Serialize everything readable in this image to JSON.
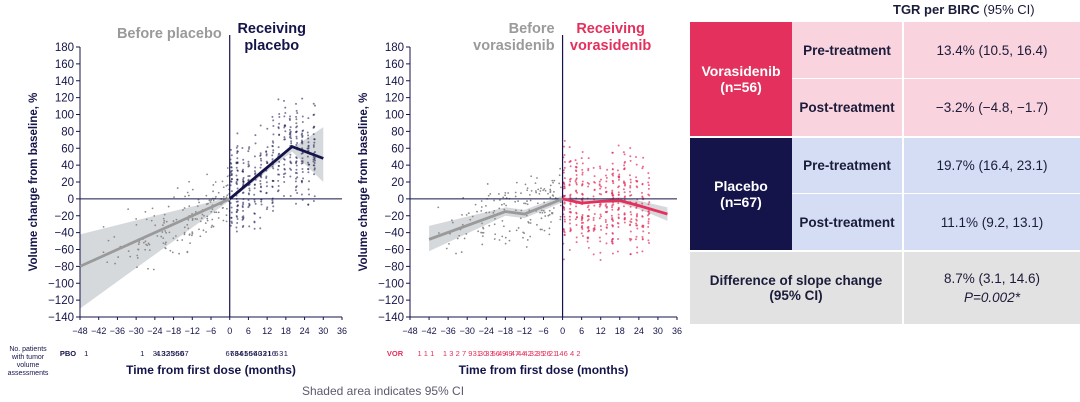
{
  "footnote": "Shaded area indicates 95% CI",
  "table": {
    "header_bold": "TGR per BIRC",
    "header_rest": " (95% CI)",
    "rows": [
      {
        "group": "Vorasidenib\n(n=56)",
        "phase": "Pre-treatment",
        "value": "13.4% (10.5, 16.4)"
      },
      {
        "group": "",
        "phase": "Post-treatment",
        "value": "−3.2%  (−4.8, −1.7)"
      },
      {
        "group": "Placebo\n(n=67)",
        "phase": "Pre-treatment",
        "value": "19.7% (16.4, 23.1)"
      },
      {
        "group": "",
        "phase": "Post-treatment",
        "value": "11.1% (9.2, 13.1)"
      }
    ],
    "diff_label": "Difference of slope change\n(95% CI)",
    "diff_value": "8.7% (3.1, 14.6)",
    "diff_p": "P=0.002*",
    "colors": {
      "vora_dark": "#e3305c",
      "vora_light": "#f9d3dd",
      "placebo_dark": "#14144a",
      "placebo_light": "#d4ddf4",
      "diff_bg": "#e2e2e2"
    }
  },
  "chart_data": [
    {
      "type": "scatter",
      "ylabel": "Volume change from baseline, %",
      "xlabel": "Time from first dose (months)",
      "ylim": [
        -140,
        180
      ],
      "xlim": [
        -48,
        36
      ],
      "yticks": [
        -140,
        -120,
        -100,
        -80,
        -60,
        -40,
        -20,
        0,
        20,
        40,
        60,
        80,
        100,
        120,
        140,
        160,
        180
      ],
      "xticks": [
        -48,
        -42,
        -36,
        -30,
        -24,
        -18,
        -12,
        -6,
        0,
        6,
        12,
        18,
        24,
        30,
        36
      ],
      "region_before": "Before placebo",
      "region_after": "Receiving\nplacebo",
      "before_color": "#9a9a9a",
      "after_color": "#14144a",
      "ci_color": "#cfd2d6",
      "pre_fit": [
        [
          -48,
          -80
        ],
        [
          0,
          0
        ]
      ],
      "pre_ci_upper": [
        [
          -48,
          -42
        ],
        [
          0,
          2
        ]
      ],
      "pre_ci_lower": [
        [
          -48,
          -130
        ],
        [
          0,
          -2
        ]
      ],
      "post_fit": [
        [
          0,
          0
        ],
        [
          20,
          62
        ],
        [
          30,
          48
        ]
      ],
      "post_ci_upper": [
        [
          0,
          2
        ],
        [
          20,
          60
        ],
        [
          30,
          85
        ]
      ],
      "post_ci_lower": [
        [
          0,
          -2
        ],
        [
          20,
          56
        ],
        [
          30,
          20
        ]
      ],
      "patients_label": "No. patients\nwith tumor\nvolume\nassessments",
      "patients_row_label": "PBO",
      "patients_row_color": "#14144a",
      "patients_counts": [
        {
          "x": -46,
          "n": "1"
        },
        {
          "x": -28,
          "n": "1"
        },
        {
          "x": -24,
          "n": "3"
        },
        {
          "x": -23,
          "n": "4"
        },
        {
          "x": -22,
          "n": "13"
        },
        {
          "x": -20.5,
          "n": "32"
        },
        {
          "x": -19,
          "n": "35"
        },
        {
          "x": -17.5,
          "n": "36"
        },
        {
          "x": -16,
          "n": "50"
        },
        {
          "x": -14.5,
          "n": "67"
        },
        {
          "x": 0,
          "n": "67"
        },
        {
          "x": 1.5,
          "n": "63"
        },
        {
          "x": 3,
          "n": "64"
        },
        {
          "x": 4.5,
          "n": "61"
        },
        {
          "x": 6,
          "n": "56"
        },
        {
          "x": 7.5,
          "n": "56"
        },
        {
          "x": 9,
          "n": "40"
        },
        {
          "x": 10.5,
          "n": "33"
        },
        {
          "x": 12,
          "n": "21"
        },
        {
          "x": 13.5,
          "n": "16"
        },
        {
          "x": 15,
          "n": "6"
        },
        {
          "x": 16.5,
          "n": "3"
        },
        {
          "x": 18,
          "n": "1"
        }
      ]
    },
    {
      "type": "scatter",
      "ylabel": "Volume change from baseline, %",
      "xlabel": "Time from first dose (months)",
      "ylim": [
        -140,
        180
      ],
      "xlim": [
        -48,
        36
      ],
      "yticks": [
        -140,
        -120,
        -100,
        -80,
        -60,
        -40,
        -20,
        0,
        20,
        40,
        60,
        80,
        100,
        120,
        140,
        160,
        180
      ],
      "xticks": [
        -48,
        -42,
        -36,
        -30,
        -24,
        -18,
        -12,
        -6,
        0,
        6,
        12,
        18,
        24,
        30,
        36
      ],
      "region_before": "Before\nvorasidenib",
      "region_after": "Receiving\nvorasidenib",
      "before_color": "#9a9a9a",
      "after_color": "#e3305c",
      "ci_color": "#cfd2d6",
      "pre_fit": [
        [
          -42,
          -48
        ],
        [
          -18,
          -15
        ],
        [
          -12,
          -18
        ],
        [
          0,
          0
        ]
      ],
      "pre_ci_upper": [
        [
          -42,
          -32
        ],
        [
          -18,
          -10
        ],
        [
          -12,
          -13
        ],
        [
          0,
          4
        ]
      ],
      "pre_ci_lower": [
        [
          -42,
          -62
        ],
        [
          -18,
          -20
        ],
        [
          -12,
          -23
        ],
        [
          0,
          -4
        ]
      ],
      "post_fit": [
        [
          0,
          0
        ],
        [
          6,
          -5
        ],
        [
          12,
          -3
        ],
        [
          18,
          -2
        ],
        [
          24,
          -8
        ],
        [
          33,
          -18
        ]
      ],
      "post_ci_upper": [
        [
          0,
          2
        ],
        [
          12,
          0
        ],
        [
          18,
          2
        ],
        [
          24,
          -2
        ],
        [
          33,
          -10
        ]
      ],
      "post_ci_lower": [
        [
          0,
          -2
        ],
        [
          12,
          -5
        ],
        [
          18,
          -5
        ],
        [
          24,
          -12
        ],
        [
          33,
          -26
        ]
      ],
      "patients_label": "",
      "patients_row_label": "VOR",
      "patients_row_color": "#e3305c",
      "patients_counts": [
        {
          "x": -45,
          "n": "1"
        },
        {
          "x": -43,
          "n": "1"
        },
        {
          "x": -41,
          "n": "1"
        },
        {
          "x": -37,
          "n": "1"
        },
        {
          "x": -35,
          "n": "3"
        },
        {
          "x": -33,
          "n": "2"
        },
        {
          "x": -31,
          "n": "7"
        },
        {
          "x": -29,
          "n": "9"
        },
        {
          "x": -27,
          "n": "31"
        },
        {
          "x": -25,
          "n": "30"
        },
        {
          "x": -23,
          "n": "33"
        },
        {
          "x": -21,
          "n": "56"
        },
        {
          "x": -19,
          "n": "49"
        },
        {
          "x": -17,
          "n": "49"
        },
        {
          "x": -15,
          "n": "47"
        },
        {
          "x": -13,
          "n": "44"
        },
        {
          "x": -11,
          "n": "42"
        },
        {
          "x": -9,
          "n": "32"
        },
        {
          "x": -7,
          "n": "35"
        },
        {
          "x": -5,
          "n": "26"
        },
        {
          "x": -3,
          "n": "21"
        },
        {
          "x": -1,
          "n": "14"
        },
        {
          "x": 1,
          "n": "6"
        },
        {
          "x": 3,
          "n": "4"
        },
        {
          "x": 5,
          "n": "2"
        }
      ]
    }
  ]
}
